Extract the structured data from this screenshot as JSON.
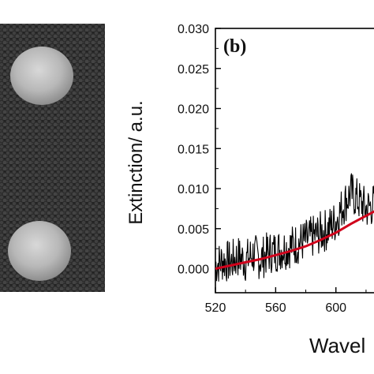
{
  "panel_label": "(b)",
  "chart_data": {
    "type": "line",
    "xlabel": "Wavel",
    "ylabel": "Extinction/ a.u.",
    "xlim": [
      520,
      630
    ],
    "ylim": [
      -0.003,
      0.03
    ],
    "x_ticks": [
      "520",
      "560",
      "600"
    ],
    "y_ticks": [
      "0.000",
      "0.005",
      "0.010",
      "0.015",
      "0.020",
      "0.025",
      "0.030"
    ],
    "series": [
      {
        "style": "noisy-measured",
        "color": "#000000",
        "x": [
          520,
          525,
          530,
          535,
          540,
          545,
          550,
          555,
          560,
          565,
          570,
          575,
          580,
          585,
          590,
          595,
          600,
          605,
          610,
          615,
          620,
          625,
          630
        ],
        "y": [
          0.0005,
          0.001,
          0.0008,
          0.0015,
          0.001,
          0.0018,
          0.0012,
          0.002,
          0.0022,
          0.0025,
          0.0028,
          0.0032,
          0.0035,
          0.004,
          0.0045,
          0.005,
          0.006,
          0.008,
          0.0095,
          0.0085,
          0.0075,
          0.008,
          0.009
        ]
      },
      {
        "style": "fit",
        "color": "#d0021b",
        "x": [
          520,
          530,
          540,
          550,
          560,
          570,
          580,
          590,
          600,
          610,
          620,
          630
        ],
        "y": [
          0.0,
          0.0004,
          0.0008,
          0.0012,
          0.0017,
          0.0022,
          0.0028,
          0.0036,
          0.0045,
          0.0056,
          0.0066,
          0.0076
        ]
      }
    ]
  },
  "colors": {
    "sem_background": "#3a3a3a",
    "particle": "#bdbdbd",
    "measured_line": "#000000",
    "fit_line": "#d0021b"
  }
}
